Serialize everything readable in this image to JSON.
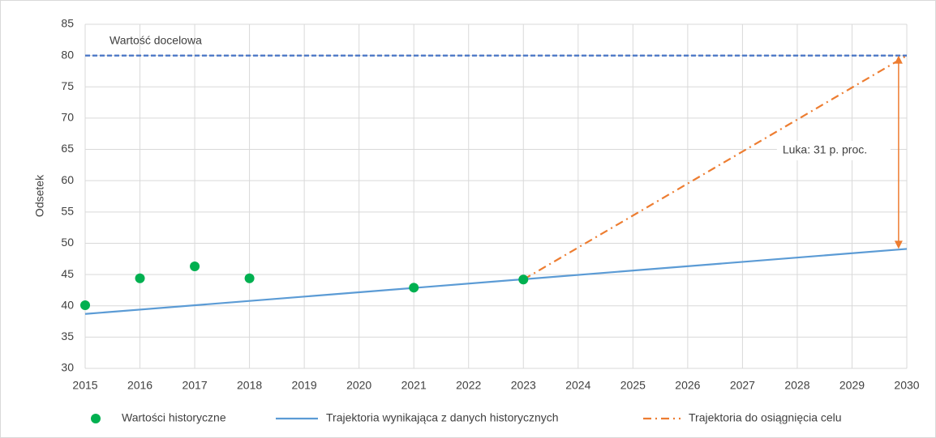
{
  "chart_data": {
    "type": "line",
    "ylabel": "Odsetek",
    "xlim": [
      2015,
      2030
    ],
    "xticks": [
      2015,
      2016,
      2017,
      2018,
      2019,
      2020,
      2021,
      2022,
      2023,
      2024,
      2025,
      2026,
      2027,
      2028,
      2029,
      2030
    ],
    "ylim": [
      30,
      85
    ],
    "yticks": [
      30,
      35,
      40,
      45,
      50,
      55,
      60,
      65,
      70,
      75,
      80,
      85
    ],
    "grid": true,
    "legend": "bottom",
    "series": [
      {
        "name": "Wartości historyczne",
        "color": "#00b050",
        "mode": "markers",
        "x": [
          2015,
          2016,
          2017,
          2018,
          2021,
          2023
        ],
        "values": [
          40.1,
          44.4,
          46.3,
          44.4,
          42.9,
          44.2
        ]
      },
      {
        "name": "Trajektoria wynikająca z danych historycznych",
        "color": "#5b9bd5",
        "mode": "lines",
        "dash": "solid",
        "x": [
          2015,
          2030
        ],
        "values": [
          38.7,
          49.1
        ]
      },
      {
        "name": "Trajektoria do osiągnięcia celu",
        "color": "#ed7d31",
        "mode": "lines",
        "dash": "dashdot",
        "x": [
          2023,
          2030
        ],
        "values": [
          44.2,
          80
        ]
      }
    ],
    "target": {
      "label": "Wartość docelowa",
      "value": 80,
      "color": "#4472c4"
    },
    "annotation": {
      "text": "Luka: 31 p. proc.",
      "x": 2029.85,
      "y_from": 49.1,
      "y_to": 80,
      "color": "#ed7d31"
    }
  }
}
